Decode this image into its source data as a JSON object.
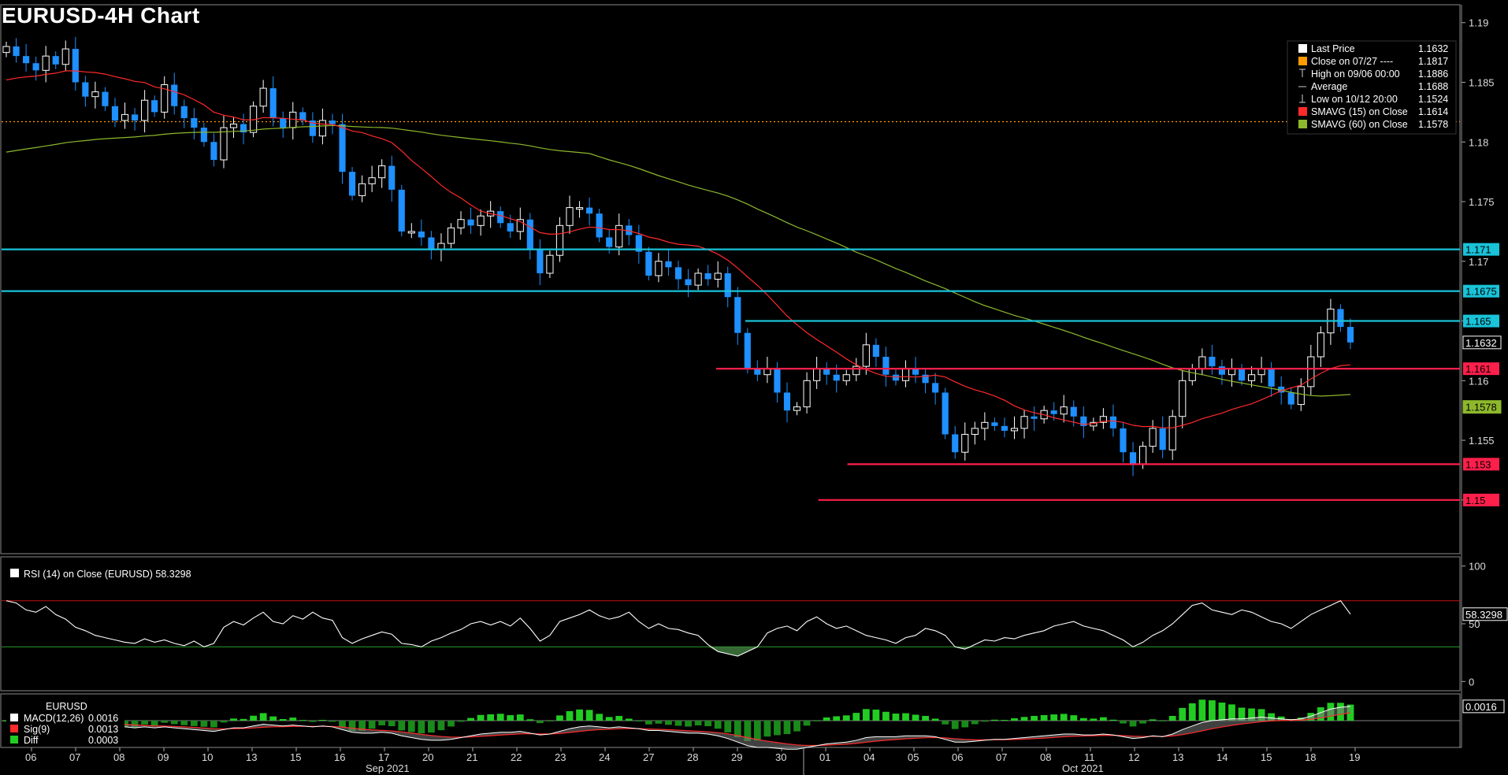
{
  "title": "EURUSD-4H Chart",
  "colors": {
    "bg": "#000000",
    "up_candle": "#ffffff",
    "down_candle": "#1e90ff",
    "sma15": "#ff2a2a",
    "sma60": "#8db82c",
    "resistance": "#19c3d8",
    "support": "#ff1f4b",
    "close_line": "#ff9a00",
    "rsi_line": "#ffffff",
    "rsi_upper": "#c01010",
    "rsi_lower": "#2ca02c",
    "macd_hist": "#22cc22",
    "macd_line": "#ffffff",
    "sig_line": "#ff2a2a"
  },
  "chart_data": [
    {
      "type": "candlestick",
      "title": "EURUSD-4H Chart",
      "ylim": [
        1.1455,
        1.1915
      ],
      "y_ticks": [
        "1.19",
        "1.185",
        "1.18",
        "1.175",
        "1.17",
        "1.165",
        "1.16",
        "1.155",
        "1.15"
      ],
      "y_tick_values": [
        1.19,
        1.185,
        1.18,
        1.175,
        1.17,
        1.165,
        1.16,
        1.155,
        1.15
      ],
      "x_day_labels": [
        "06",
        "07",
        "08",
        "09",
        "10",
        "13",
        "15",
        "16",
        "17",
        "20",
        "21",
        "22",
        "23",
        "24",
        "27",
        "28",
        "29",
        "30",
        "01",
        "04",
        "05",
        "06",
        "07",
        "08",
        "11",
        "12",
        "13",
        "14",
        "15",
        "18",
        "19"
      ],
      "x_month_labels": [
        "Sep 2021",
        "Oct 2021"
      ],
      "legend": [
        {
          "label": "Last Price",
          "value": "1.1632",
          "marker": "square-white"
        },
        {
          "label": "Close on 07/27 ----",
          "value": "1.1817",
          "marker": "square-orange"
        },
        {
          "label": "High on 09/06 00:00",
          "value": "1.1886",
          "marker": "high"
        },
        {
          "label": "Average",
          "value": "1.1688",
          "marker": "avg"
        },
        {
          "label": "Low on 10/12 20:00",
          "value": "1.1524",
          "marker": "low"
        },
        {
          "label": "SMAVG (15)   on Close",
          "value": "1.1614",
          "marker": "square-red"
        },
        {
          "label": "SMAVG (60)   on Close",
          "value": "1.1578",
          "marker": "square-green"
        }
      ],
      "close_reference": 1.1817,
      "levels": [
        {
          "value": 1.171,
          "label": "1.171",
          "kind": "resistance",
          "x_start": 0
        },
        {
          "value": 1.1675,
          "label": "1.1675",
          "kind": "resistance",
          "x_start": 0
        },
        {
          "value": 1.165,
          "label": "1.165",
          "kind": "resistance",
          "x_start": 0.51
        },
        {
          "value": 1.161,
          "label": "1.161",
          "kind": "support",
          "x_start": 0.49
        },
        {
          "value": 1.153,
          "label": "1.153",
          "kind": "support",
          "x_start": 0.58
        },
        {
          "value": 1.15,
          "label": "1.15",
          "kind": "support",
          "x_start": 0.56
        }
      ],
      "price_tags": [
        {
          "value": 1.1632,
          "label": "1.1632",
          "kind": "last"
        },
        {
          "value": 1.1578,
          "label": "1.1578",
          "kind": "sma60"
        }
      ],
      "close_path": [
        1.188,
        1.1872,
        1.1866,
        1.186,
        1.1872,
        1.1865,
        1.1878,
        1.185,
        1.1838,
        1.1842,
        1.183,
        1.1818,
        1.1823,
        1.1818,
        1.1835,
        1.1825,
        1.1848,
        1.183,
        1.182,
        1.1812,
        1.18,
        1.1785,
        1.1812,
        1.1815,
        1.1808,
        1.183,
        1.1845,
        1.182,
        1.1812,
        1.1825,
        1.1818,
        1.1805,
        1.1818,
        1.1815,
        1.1775,
        1.1755,
        1.1765,
        1.177,
        1.178,
        1.176,
        1.1725,
        1.1725,
        1.172,
        1.171,
        1.1715,
        1.1728,
        1.1735,
        1.173,
        1.1738,
        1.1742,
        1.1732,
        1.1725,
        1.1735,
        1.171,
        1.169,
        1.1705,
        1.173,
        1.1745,
        1.1745,
        1.174,
        1.172,
        1.1712,
        1.173,
        1.1722,
        1.1708,
        1.1688,
        1.17,
        1.1695,
        1.1685,
        1.168,
        1.169,
        1.1685,
        1.169,
        1.167,
        1.164,
        1.161,
        1.1605,
        1.161,
        1.159,
        1.1575,
        1.1578,
        1.16,
        1.161,
        1.1605,
        1.16,
        1.1605,
        1.1612,
        1.163,
        1.162,
        1.1605,
        1.16,
        1.161,
        1.1605,
        1.1598,
        1.159,
        1.1555,
        1.154,
        1.1555,
        1.156,
        1.1565,
        1.1562,
        1.1558,
        1.156,
        1.157,
        1.1568,
        1.1575,
        1.1572,
        1.1578,
        1.157,
        1.1562,
        1.1565,
        1.157,
        1.156,
        1.154,
        1.153,
        1.1545,
        1.156,
        1.1542,
        1.157,
        1.16,
        1.161,
        1.162,
        1.1612,
        1.1605,
        1.161,
        1.16,
        1.1605,
        1.161,
        1.1595,
        1.159,
        1.158,
        1.1595,
        1.162,
        1.164,
        1.166,
        1.1645,
        1.1632
      ]
    },
    {
      "type": "line",
      "title": "RSI (14)  on Close (EURUSD)",
      "value_label": "58.3298",
      "ylim": [
        -8,
        108
      ],
      "y_ticks": [
        "100",
        "50",
        "0"
      ],
      "y_tick_values": [
        100,
        50,
        0
      ],
      "upper_band": 70,
      "lower_band": 30,
      "values": [
        70,
        68,
        62,
        60,
        65,
        58,
        54,
        47,
        44,
        40,
        38,
        36,
        34,
        33,
        37,
        34,
        36,
        33,
        31,
        35,
        30,
        33,
        47,
        52,
        49,
        55,
        60,
        52,
        50,
        57,
        54,
        60,
        55,
        53,
        38,
        33,
        37,
        40,
        43,
        41,
        33,
        32,
        30,
        35,
        38,
        42,
        45,
        50,
        52,
        49,
        52,
        48,
        55,
        46,
        35,
        40,
        52,
        55,
        58,
        62,
        57,
        54,
        56,
        60,
        52,
        46,
        50,
        46,
        45,
        42,
        40,
        32,
        26,
        24,
        22,
        26,
        30,
        42,
        46,
        48,
        44,
        52,
        56,
        50,
        46,
        48,
        44,
        40,
        38,
        36,
        33,
        38,
        40,
        46,
        44,
        40,
        30,
        28,
        32,
        36,
        35,
        38,
        37,
        40,
        42,
        44,
        48,
        50,
        52,
        48,
        46,
        44,
        40,
        36,
        30,
        34,
        40,
        44,
        50,
        58,
        66,
        68,
        62,
        60,
        58,
        62,
        60,
        56,
        52,
        50,
        46,
        52,
        58,
        62,
        66,
        70,
        58.33
      ]
    },
    {
      "type": "histogram",
      "title": "EURUSD",
      "legend": [
        {
          "label": "MACD(12,26)",
          "value": "0.0016",
          "marker": "square-white"
        },
        {
          "label": "Sig(9)",
          "value": "0.0013",
          "marker": "square-red"
        },
        {
          "label": "Diff",
          "value": "0.0003",
          "marker": "square-green"
        }
      ],
      "value_label": "0.0016",
      "ylim": [
        -0.003,
        0.003
      ],
      "macd": [
        0.0004,
        0.0003,
        0.0002,
        0.0001,
        0.0,
        -0.0001,
        -0.0002,
        -0.0003,
        -0.0004,
        -0.0005,
        -0.0006,
        -0.0007,
        -0.0007,
        -0.0008,
        -0.0007,
        -0.0008,
        -0.0007,
        -0.0008,
        -0.0009,
        -0.001,
        -0.0011,
        -0.0012,
        -0.001,
        -0.0008,
        -0.0008,
        -0.0006,
        -0.0004,
        -0.0005,
        -0.0006,
        -0.0005,
        -0.0006,
        -0.0007,
        -0.0006,
        -0.0007,
        -0.001,
        -0.0013,
        -0.0014,
        -0.0014,
        -0.0013,
        -0.0014,
        -0.0017,
        -0.0019,
        -0.0021,
        -0.0022,
        -0.0022,
        -0.0021,
        -0.0019,
        -0.0017,
        -0.0015,
        -0.0014,
        -0.0013,
        -0.0013,
        -0.0012,
        -0.0014,
        -0.0016,
        -0.0015,
        -0.0012,
        -0.0009,
        -0.0007,
        -0.0006,
        -0.0007,
        -0.0008,
        -0.0007,
        -0.0008,
        -0.0009,
        -0.0011,
        -0.0011,
        -0.0012,
        -0.0013,
        -0.0014,
        -0.0014,
        -0.0015,
        -0.0017,
        -0.002,
        -0.0024,
        -0.0028,
        -0.003,
        -0.003,
        -0.0031,
        -0.0032,
        -0.0032,
        -0.003,
        -0.0028,
        -0.0026,
        -0.0025,
        -0.0024,
        -0.0022,
        -0.0019,
        -0.0018,
        -0.0018,
        -0.0018,
        -0.0017,
        -0.0017,
        -0.0017,
        -0.0018,
        -0.0021,
        -0.0024,
        -0.0024,
        -0.0023,
        -0.0022,
        -0.0021,
        -0.0021,
        -0.002,
        -0.0019,
        -0.0018,
        -0.0017,
        -0.0016,
        -0.0015,
        -0.0015,
        -0.0016,
        -0.0016,
        -0.0015,
        -0.0016,
        -0.0018,
        -0.002,
        -0.0019,
        -0.0017,
        -0.0018,
        -0.0015,
        -0.001,
        -0.0006,
        -0.0002,
        0.0,
        0.0001,
        0.0002,
        0.0002,
        0.0003,
        0.0004,
        0.0003,
        0.0002,
        0.0001,
        0.0002,
        0.0005,
        0.0009,
        0.0013,
        0.0015,
        0.0016
      ]
    }
  ],
  "rsi_legend": "RSI (14)  on Close (EURUSD) 58.3298"
}
